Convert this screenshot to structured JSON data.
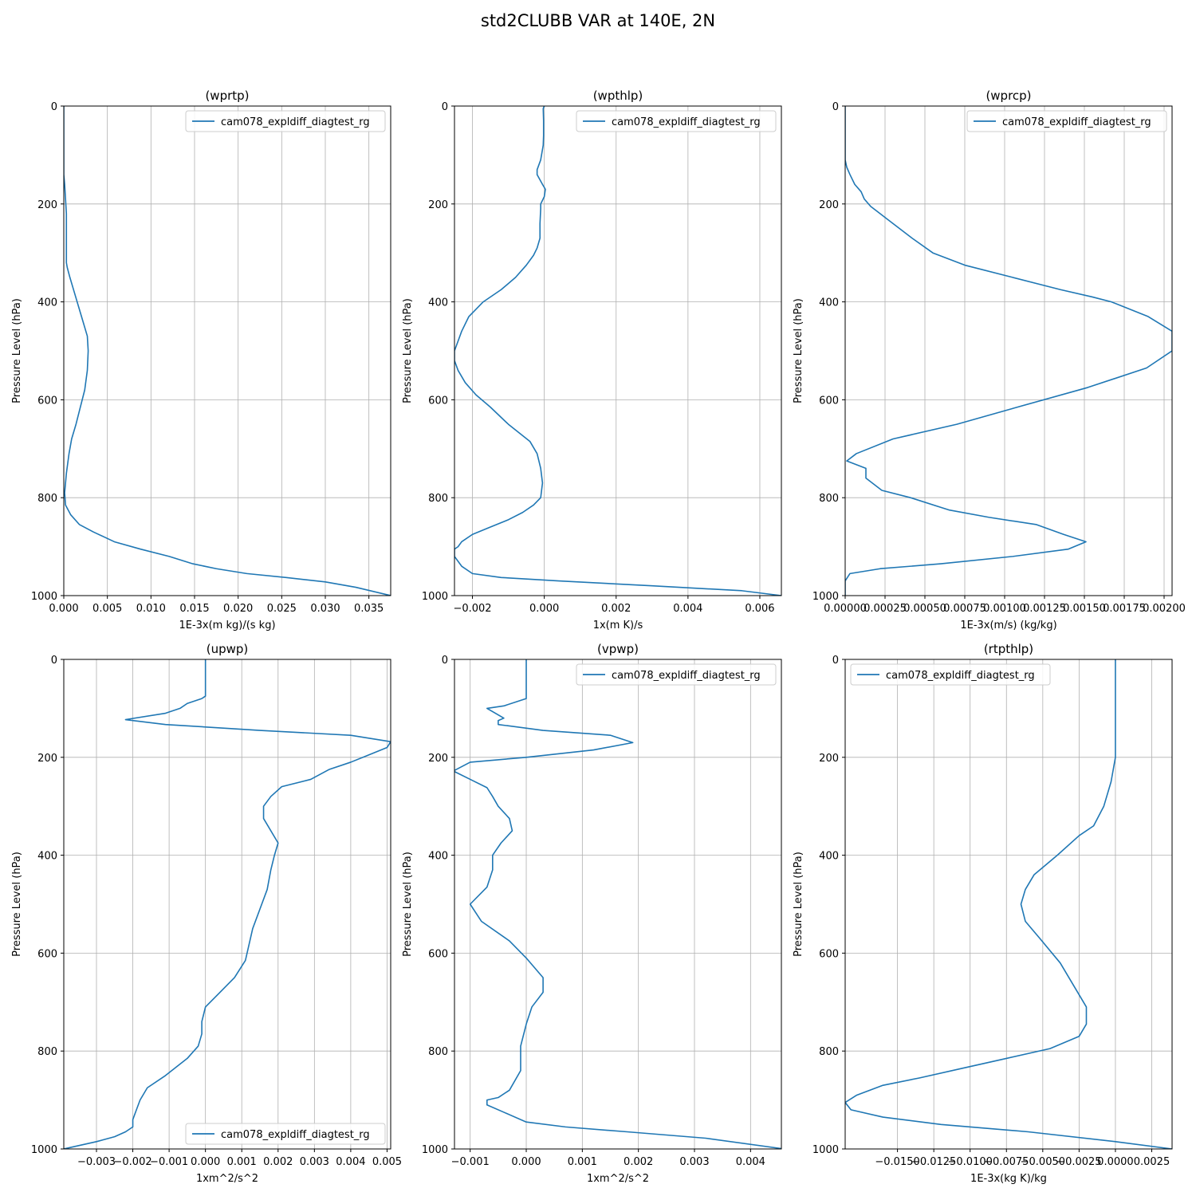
{
  "figure_title": "std2CLUBB VAR at 140E, 2N",
  "colors": {
    "line": "#1f77b4",
    "grid": "#b0b0b0",
    "axis": "#000000",
    "legend_border": "#cccccc"
  },
  "chart_data": [
    {
      "type": "line",
      "title": "(wprtp)",
      "xlabel": "1E-3x(m kg)/(s kg)",
      "ylabel": "Pressure Level (hPa)",
      "xlim": [
        0,
        0.0375
      ],
      "ylim": [
        1000,
        0
      ],
      "xticks": [
        0,
        0.005,
        0.01,
        0.015,
        0.02,
        0.025,
        0.03,
        0.035
      ],
      "xticklabels": [
        "0.000",
        "0.005",
        "0.010",
        "0.015",
        "0.020",
        "0.025",
        "0.030",
        "0.035"
      ],
      "yticks": [
        0,
        200,
        400,
        600,
        800,
        1000
      ],
      "yticklabels": [
        "0",
        "200",
        "400",
        "600",
        "800",
        "1000"
      ],
      "grid": true,
      "legend_position": "upper-right",
      "series": [
        {
          "name": "cam078_expldiff_diagtest_rg",
          "x": [
            0,
            0,
            0.0001,
            0.0002,
            0.0003,
            0.0003,
            0.0003,
            0.0003,
            0.0003,
            0.0004,
            0.0007,
            0.0012,
            0.0017,
            0.0022,
            0.0027,
            0.0028,
            0.0027,
            0.0024,
            0.0019,
            0.0014,
            0.0009,
            0.0006,
            0.0003,
            0.0001,
            0.0002,
            0.0008,
            0.0018,
            0.0034,
            0.0058,
            0.0088,
            0.0121,
            0.0148,
            0.0175,
            0.021,
            0.0255,
            0.03,
            0.0335,
            0.0375
          ],
          "y": [
            0,
            140,
            160,
            190,
            220,
            250,
            270,
            300,
            320,
            330,
            350,
            380,
            410,
            440,
            470,
            500,
            540,
            580,
            615,
            650,
            680,
            710,
            750,
            790,
            815,
            835,
            855,
            870,
            890,
            905,
            920,
            935,
            945,
            955,
            963,
            972,
            983,
            1000
          ]
        }
      ]
    },
    {
      "type": "line",
      "title": "(wpthlp)",
      "xlabel": "1x(m K)/s",
      "ylabel": "Pressure Level (hPa)",
      "xlim": [
        -0.0025,
        0.0066
      ],
      "ylim": [
        1000,
        0
      ],
      "xticks": [
        -0.002,
        0,
        0.002,
        0.004,
        0.006
      ],
      "xticklabels": [
        "−0.002",
        "0.000",
        "0.002",
        "0.004",
        "0.006"
      ],
      "yticks": [
        0,
        200,
        400,
        600,
        800,
        1000
      ],
      "yticklabels": [
        "0",
        "200",
        "400",
        "600",
        "800",
        "1000"
      ],
      "grid": true,
      "legend_position": "upper-right",
      "series": [
        {
          "name": "cam078_expldiff_diagtest_rg",
          "x": [
            0.0,
            -3e-05,
            -2e-05,
            -2e-05,
            -3e-05,
            -0.0001,
            -0.0002,
            -0.0002,
            -5e-05,
            3e-05,
            0.0,
            -0.0001,
            -0.0001,
            -0.00012,
            -0.00012,
            -0.0002,
            -0.0003,
            -0.0005,
            -0.0008,
            -0.0012,
            -0.0017,
            -0.0021,
            -0.0023,
            -0.0024,
            -0.0025,
            -0.0025,
            -0.0024,
            -0.0022,
            -0.0019,
            -0.0015,
            -0.001,
            -0.0004,
            -0.0002,
            -0.0001,
            -5e-05,
            -0.0001,
            -0.0003,
            -0.0006,
            -0.001,
            -0.0015,
            -0.002,
            -0.0023,
            -0.0024,
            -0.0025,
            -0.0025,
            -0.0023,
            -0.002,
            -0.0012,
            0.0004,
            0.003,
            0.0055,
            0.0066
          ],
          "y": [
            0,
            5,
            30,
            60,
            80,
            110,
            130,
            140,
            160,
            170,
            185,
            200,
            210,
            240,
            270,
            290,
            305,
            325,
            350,
            375,
            400,
            430,
            460,
            480,
            500,
            520,
            540,
            565,
            590,
            615,
            650,
            685,
            710,
            740,
            770,
            800,
            815,
            830,
            845,
            860,
            875,
            890,
            900,
            905,
            920,
            940,
            955,
            963,
            970,
            980,
            990,
            1000
          ]
        }
      ]
    },
    {
      "type": "line",
      "title": "(wprcp)",
      "xlabel": "1E-3x(m/s) (kg/kg)",
      "ylabel": "Pressure Level (hPa)",
      "xlim": [
        0,
        0.00205
      ],
      "ylim": [
        1000,
        0
      ],
      "xticks": [
        0,
        0.00025,
        0.0005,
        0.00075,
        0.001,
        0.00125,
        0.0015,
        0.00175,
        0.002
      ],
      "xticklabels": [
        "0.00000",
        "0.00025",
        "0.00050",
        "0.00075",
        "0.00100",
        "0.00125",
        "0.00150",
        "0.00175",
        "0.00200"
      ],
      "yticks": [
        0,
        200,
        400,
        600,
        800,
        1000
      ],
      "yticklabels": [
        "0",
        "200",
        "400",
        "600",
        "800",
        "1000"
      ],
      "grid": true,
      "legend_position": "upper-right",
      "series": [
        {
          "name": "cam078_expldiff_diagtest_rg",
          "x": [
            0,
            0,
            1e-05,
            3e-05,
            6e-05,
            0.0001,
            0.00012,
            0.00016,
            0.0002,
            0.00026,
            0.00034,
            0.00042,
            0.00055,
            0.00075,
            0.00105,
            0.00135,
            0.00155,
            0.00167,
            0.0019,
            0.00205,
            0.00205,
            0.00189,
            0.00152,
            0.00108,
            0.0007,
            0.0003,
            7e-05,
            1e-05,
            0.00013,
            0.00013,
            0.00023,
            0.00041,
            0.00065,
            0.0009,
            0.0012,
            0.00137,
            0.00151,
            0.0014,
            0.00105,
            0.0006,
            0.00022,
            3e-05,
            0,
            0
          ],
          "y": [
            0,
            110,
            125,
            140,
            160,
            175,
            190,
            205,
            215,
            230,
            250,
            270,
            300,
            325,
            350,
            375,
            390,
            400,
            430,
            460,
            500,
            535,
            575,
            615,
            650,
            680,
            710,
            725,
            740,
            760,
            785,
            800,
            825,
            840,
            855,
            875,
            890,
            905,
            920,
            935,
            945,
            955,
            970,
            1000
          ]
        }
      ]
    },
    {
      "type": "line",
      "title": "(upwp)",
      "xlabel": "1xm^2/s^2",
      "ylabel": "Pressure Level (hPa)",
      "xlim": [
        -0.0039,
        0.0051
      ],
      "ylim": [
        1000,
        0
      ],
      "xticks": [
        -0.003,
        -0.002,
        -0.001,
        0,
        0.001,
        0.002,
        0.003,
        0.004,
        0.005
      ],
      "xticklabels": [
        "−0.003",
        "−0.002",
        "−0.001",
        "0.000",
        "0.001",
        "0.002",
        "0.003",
        "0.004",
        "0.005"
      ],
      "yticks": [
        0,
        200,
        400,
        600,
        800,
        1000
      ],
      "yticklabels": [
        "0",
        "200",
        "400",
        "600",
        "800",
        "1000"
      ],
      "grid": true,
      "legend_position": "lower-right",
      "series": [
        {
          "name": "cam078_expldiff_diagtest_rg",
          "x": [
            0,
            0,
            -0.0001,
            -0.0005,
            -0.0007,
            -0.0011,
            -0.0022,
            -0.0011,
            0.0015,
            0.004,
            0.0051,
            0.005,
            0.0045,
            0.004,
            0.0034,
            0.0029,
            0.0021,
            0.0018,
            0.0016,
            0.0016,
            0.002,
            0.0019,
            0.0018,
            0.0017,
            0.0015,
            0.0013,
            0.0011,
            0.0008,
            0.0004,
            0,
            -0.0001,
            -0.0001,
            -0.0002,
            -0.0005,
            -0.0011,
            -0.0016,
            -0.0018,
            -0.0019,
            -0.002,
            -0.002,
            -0.0022,
            -0.0025,
            -0.003,
            -0.0039
          ],
          "y": [
            0,
            75,
            80,
            90,
            100,
            110,
            123,
            133,
            145,
            155,
            168,
            180,
            195,
            210,
            225,
            245,
            260,
            280,
            300,
            325,
            375,
            400,
            430,
            470,
            510,
            550,
            615,
            650,
            680,
            710,
            740,
            765,
            790,
            815,
            850,
            875,
            900,
            920,
            940,
            955,
            965,
            975,
            985,
            1000
          ]
        }
      ]
    },
    {
      "type": "line",
      "title": "(vpwp)",
      "xlabel": "1xm^2/s^2",
      "ylabel": "Pressure Level (hPa)",
      "xlim": [
        -0.00128,
        0.00455
      ],
      "ylim": [
        1000,
        0
      ],
      "xticks": [
        -0.001,
        0,
        0.001,
        0.002,
        0.003,
        0.004
      ],
      "xticklabels": [
        "−0.001",
        "0.000",
        "0.001",
        "0.002",
        "0.003",
        "0.004"
      ],
      "yticks": [
        0,
        200,
        400,
        600,
        800,
        1000
      ],
      "yticklabels": [
        "0",
        "200",
        "400",
        "600",
        "800",
        "1000"
      ],
      "grid": true,
      "legend_position": "upper-right",
      "series": [
        {
          "name": "cam078_expldiff_diagtest_rg",
          "x": [
            0,
            0,
            -0.0004,
            -0.0007,
            -0.0004,
            -0.0005,
            -0.0005,
            0.0003,
            0.0015,
            0.0019,
            0.0012,
            0,
            -0.001,
            -0.0013,
            -0.001,
            -0.0007,
            -0.0006,
            -0.0005,
            -0.0003,
            -0.00025,
            -0.00045,
            -0.0006,
            -0.0006,
            -0.0007,
            -0.001,
            -0.0008,
            -0.0003,
            0,
            0.0003,
            0.0003,
            0.0001,
            0,
            -0.0001,
            -0.0001,
            -0.0003,
            -0.0005,
            -0.0007,
            -0.0007,
            -0.0004,
            0,
            0.0007,
            0.0018,
            0.0032,
            0.0046
          ],
          "y": [
            0,
            80,
            95,
            100,
            120,
            125,
            133,
            145,
            155,
            170,
            185,
            200,
            210,
            228,
            245,
            262,
            280,
            300,
            325,
            350,
            375,
            400,
            430,
            465,
            500,
            535,
            575,
            610,
            650,
            680,
            710,
            745,
            790,
            840,
            880,
            895,
            900,
            910,
            925,
            945,
            955,
            965,
            978,
            1000
          ]
        }
      ]
    },
    {
      "type": "line",
      "title": "(rtpthlp)",
      "xlabel": "1E-3x(kg K)/kg",
      "ylabel": "Pressure Level (hPa)",
      "xlim": [
        -0.0186,
        0.0039
      ],
      "ylim": [
        1000,
        0
      ],
      "xticks": [
        -0.015,
        -0.0125,
        -0.01,
        -0.0075,
        -0.005,
        -0.0025,
        0,
        0.0025
      ],
      "xticklabels": [
        "−0.0150",
        "−0.0125",
        "−0.0100",
        "−0.0075",
        "−0.0050",
        "−0.0025",
        "0.0000",
        "0.0025"
      ],
      "yticks": [
        0,
        200,
        400,
        600,
        800,
        1000
      ],
      "yticklabels": [
        "0",
        "200",
        "400",
        "600",
        "800",
        "1000"
      ],
      "grid": true,
      "legend_position": "upper-left",
      "series": [
        {
          "name": "cam078_expldiff_diagtest_rg",
          "x": [
            0,
            0,
            0,
            -0.0003,
            -0.0008,
            -0.0015,
            -0.0025,
            -0.004,
            -0.0056,
            -0.0062,
            -0.0065,
            -0.0062,
            -0.0052,
            -0.0038,
            -0.0025,
            -0.002,
            -0.002,
            -0.0025,
            -0.0045,
            -0.0075,
            -0.0105,
            -0.0135,
            -0.016,
            -0.0178,
            -0.0186,
            -0.0182,
            -0.016,
            -0.012,
            -0.006,
            0,
            0.0039
          ],
          "y": [
            0,
            150,
            200,
            250,
            300,
            340,
            360,
            400,
            440,
            470,
            500,
            535,
            570,
            620,
            685,
            710,
            745,
            770,
            795,
            815,
            835,
            855,
            870,
            890,
            905,
            920,
            935,
            950,
            965,
            985,
            1000
          ]
        }
      ]
    }
  ]
}
